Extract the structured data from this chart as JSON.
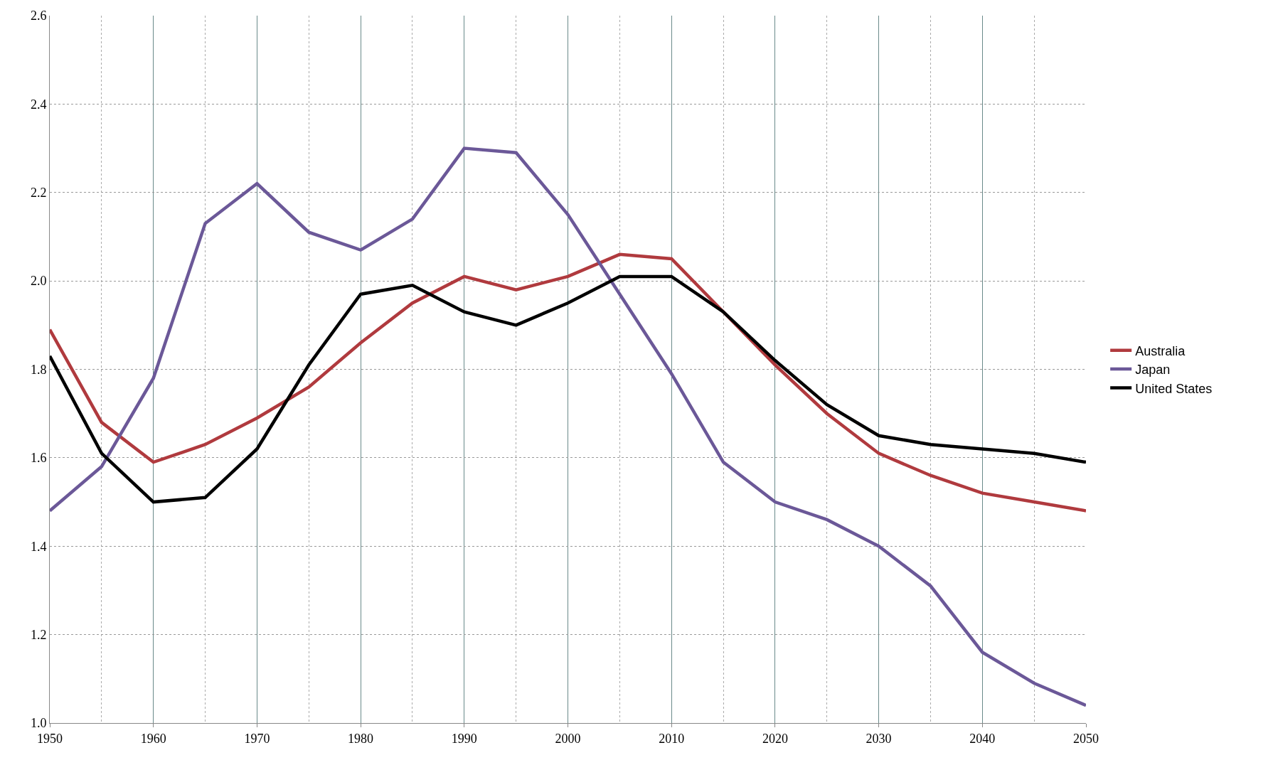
{
  "chart_data": {
    "type": "line",
    "x": [
      1950,
      1955,
      1960,
      1965,
      1970,
      1975,
      1980,
      1985,
      1990,
      1995,
      2000,
      2005,
      2010,
      2015,
      2020,
      2025,
      2030,
      2035,
      2040,
      2045,
      2050
    ],
    "series": [
      {
        "name": "Australia",
        "color": "#b03a3e",
        "values": [
          1.89,
          1.68,
          1.59,
          1.63,
          1.69,
          1.76,
          1.86,
          1.95,
          2.01,
          1.98,
          2.01,
          2.06,
          2.05,
          1.93,
          1.81,
          1.7,
          1.61,
          1.56,
          1.52,
          1.5,
          1.48
        ]
      },
      {
        "name": "Japan",
        "color": "#6b5898",
        "values": [
          1.48,
          1.58,
          1.78,
          2.13,
          2.22,
          2.11,
          2.07,
          2.14,
          2.3,
          2.29,
          2.15,
          1.97,
          1.79,
          1.59,
          1.5,
          1.46,
          1.4,
          1.31,
          1.16,
          1.09,
          1.04
        ]
      },
      {
        "name": "United States",
        "color": "#000000",
        "values": [
          1.83,
          1.61,
          1.5,
          1.51,
          1.62,
          1.81,
          1.97,
          1.99,
          1.93,
          1.9,
          1.95,
          2.01,
          2.01,
          1.93,
          1.82,
          1.72,
          1.65,
          1.63,
          1.62,
          1.61,
          1.59
        ]
      }
    ],
    "xlim": [
      1950,
      2050
    ],
    "xticks": [
      1950,
      {
        "value": 1955,
        "label": null
      },
      1960,
      {
        "value": 1965,
        "label": null
      },
      1970,
      {
        "value": 1975,
        "label": null
      },
      1980,
      {
        "value": 1985,
        "label": null
      },
      1990,
      {
        "value": 1995,
        "label": null
      },
      2000,
      {
        "value": 2005,
        "label": null
      },
      2010,
      {
        "value": 2015,
        "label": null
      },
      2020,
      {
        "value": 2025,
        "label": null
      },
      2030,
      {
        "value": 2035,
        "label": null
      },
      2040,
      {
        "value": 2045,
        "label": null
      },
      2050
    ],
    "ylim": [
      1.0,
      2.6
    ],
    "yticks": [
      {
        "value": 1.0,
        "label": "1.0"
      },
      1.2,
      1.4,
      1.6,
      1.8,
      {
        "value": 2.0,
        "label": "2.0"
      },
      2.2,
      2.4,
      2.6
    ],
    "grid": true,
    "legend": "right",
    "marker": "none",
    "line_style": "solid"
  }
}
